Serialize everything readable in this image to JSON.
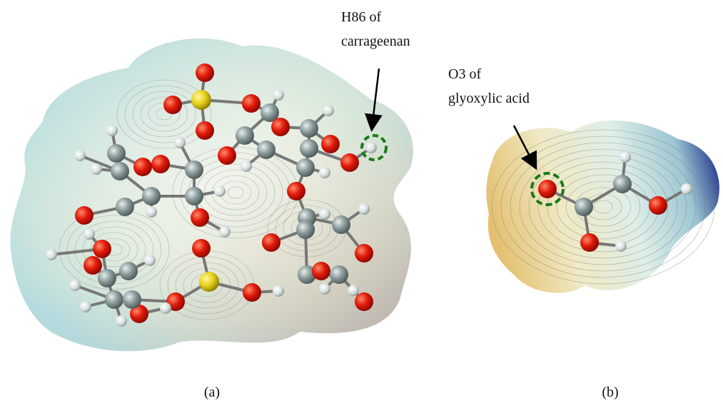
{
  "panels": [
    {
      "label": "(a)",
      "callout": {
        "lines": [
          "H86 of",
          "carrageenan"
        ]
      }
    },
    {
      "label": "(b)",
      "callout": {
        "lines": [
          "O3 of",
          "glyoxylic acid"
        ]
      }
    }
  ]
}
